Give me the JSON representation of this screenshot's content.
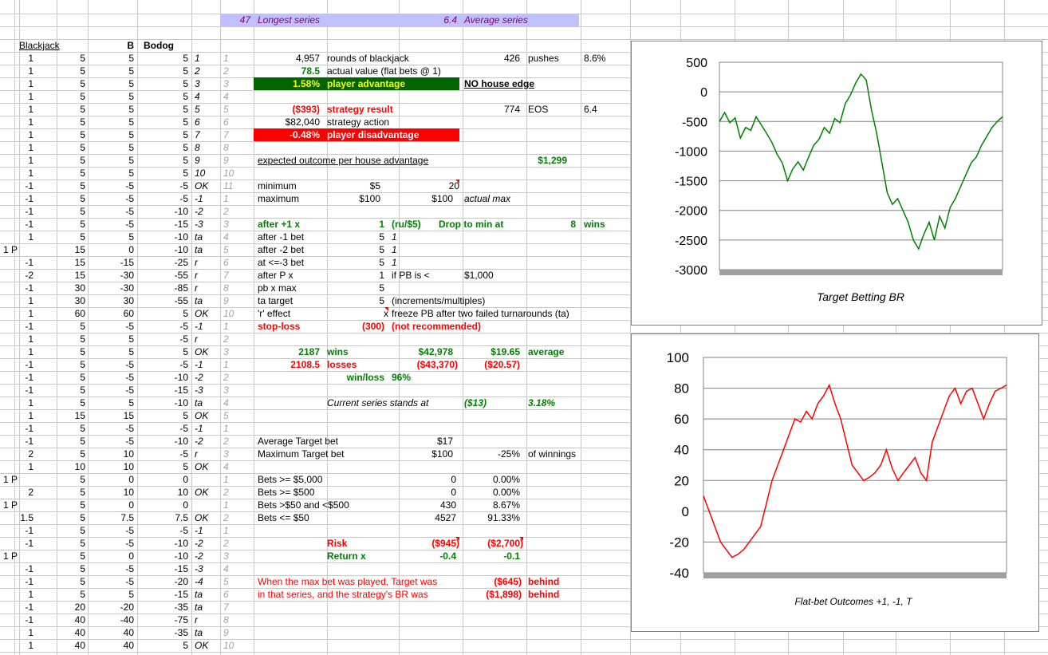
{
  "header": {
    "longest_value": "47",
    "longest_label": "Longest series",
    "average_value": "6.4",
    "average_label": "Average series"
  },
  "cols": {
    "blackjack": "Blackjack",
    "b": "B",
    "bodog": "Bodog"
  },
  "left_rows": [
    {
      "a": "",
      "bj": "1",
      "v": "5",
      "b": "5",
      "bd": "5",
      "s": "1",
      "n": "1"
    },
    {
      "a": "",
      "bj": "1",
      "v": "5",
      "b": "5",
      "bd": "5",
      "s": "2",
      "n": "2"
    },
    {
      "a": "",
      "bj": "1",
      "v": "5",
      "b": "5",
      "bd": "5",
      "s": "3",
      "n": "3"
    },
    {
      "a": "",
      "bj": "1",
      "v": "5",
      "b": "5",
      "bd": "5",
      "s": "4",
      "n": "4"
    },
    {
      "a": "",
      "bj": "1",
      "v": "5",
      "b": "5",
      "bd": "5",
      "s": "5",
      "n": "5"
    },
    {
      "a": "",
      "bj": "1",
      "v": "5",
      "b": "5",
      "bd": "5",
      "s": "6",
      "n": "6"
    },
    {
      "a": "",
      "bj": "1",
      "v": "5",
      "b": "5",
      "bd": "5",
      "s": "7",
      "n": "7"
    },
    {
      "a": "",
      "bj": "1",
      "v": "5",
      "b": "5",
      "bd": "5",
      "s": "8",
      "n": "8"
    },
    {
      "a": "",
      "bj": "1",
      "v": "5",
      "b": "5",
      "bd": "5",
      "s": "9",
      "n": "9"
    },
    {
      "a": "",
      "bj": "1",
      "v": "5",
      "b": "5",
      "bd": "5",
      "s": "10",
      "n": "10"
    },
    {
      "a": "",
      "bj": "-1",
      "v": "5",
      "b": "-5",
      "bd": "-5",
      "s": "OK",
      "n": "11"
    },
    {
      "a": "",
      "bj": "-1",
      "v": "5",
      "b": "-5",
      "bd": "-5",
      "s": "-1",
      "n": "1"
    },
    {
      "a": "",
      "bj": "-1",
      "v": "5",
      "b": "-5",
      "bd": "-10",
      "s": "-2",
      "n": "2"
    },
    {
      "a": "",
      "bj": "-1",
      "v": "5",
      "b": "-5",
      "bd": "-15",
      "s": "-3",
      "n": "3"
    },
    {
      "a": "",
      "bj": "1",
      "v": "5",
      "b": "5",
      "bd": "-10",
      "s": "ta",
      "n": "4"
    },
    {
      "a": "1 P",
      "bj": "",
      "v": "15",
      "b": "0",
      "bd": "-10",
      "s": "ta",
      "n": "5"
    },
    {
      "a": "",
      "bj": "-1",
      "v": "15",
      "b": "-15",
      "bd": "-25",
      "s": "r",
      "n": "6"
    },
    {
      "a": "",
      "bj": "-2",
      "v": "15",
      "b": "-30",
      "bd": "-55",
      "s": "r",
      "n": "7"
    },
    {
      "a": "",
      "bj": "-1",
      "v": "30",
      "b": "-30",
      "bd": "-85",
      "s": "r",
      "n": "8"
    },
    {
      "a": "",
      "bj": "1",
      "v": "30",
      "b": "30",
      "bd": "-55",
      "s": "ta",
      "n": "9"
    },
    {
      "a": "",
      "bj": "1",
      "v": "60",
      "b": "60",
      "bd": "5",
      "s": "OK",
      "n": "10"
    },
    {
      "a": "",
      "bj": "-1",
      "v": "5",
      "b": "-5",
      "bd": "-5",
      "s": "-1",
      "n": "1"
    },
    {
      "a": "",
      "bj": "1",
      "v": "5",
      "b": "5",
      "bd": "-5",
      "s": "r",
      "n": "2"
    },
    {
      "a": "",
      "bj": "1",
      "v": "5",
      "b": "5",
      "bd": "5",
      "s": "OK",
      "n": "3"
    },
    {
      "a": "",
      "bj": "-1",
      "v": "5",
      "b": "-5",
      "bd": "-5",
      "s": "-1",
      "n": "1"
    },
    {
      "a": "",
      "bj": "-1",
      "v": "5",
      "b": "-5",
      "bd": "-10",
      "s": "-2",
      "n": "2"
    },
    {
      "a": "",
      "bj": "-1",
      "v": "5",
      "b": "-5",
      "bd": "-15",
      "s": "-3",
      "n": "3"
    },
    {
      "a": "",
      "bj": "1",
      "v": "5",
      "b": "5",
      "bd": "-10",
      "s": "ta",
      "n": "4"
    },
    {
      "a": "",
      "bj": "1",
      "v": "15",
      "b": "15",
      "bd": "5",
      "s": "OK",
      "n": "5"
    },
    {
      "a": "",
      "bj": "-1",
      "v": "5",
      "b": "-5",
      "bd": "-5",
      "s": "-1",
      "n": "1"
    },
    {
      "a": "",
      "bj": "-1",
      "v": "5",
      "b": "-5",
      "bd": "-10",
      "s": "-2",
      "n": "2"
    },
    {
      "a": "",
      "bj": "2",
      "v": "5",
      "b": "10",
      "bd": "-5",
      "s": "r",
      "n": "3"
    },
    {
      "a": "",
      "bj": "1",
      "v": "10",
      "b": "10",
      "bd": "5",
      "s": "OK",
      "n": "4"
    },
    {
      "a": "1 P",
      "bj": "",
      "v": "5",
      "b": "0",
      "bd": "0",
      "s": "",
      "n": "1"
    },
    {
      "a": "",
      "bj": "2",
      "v": "5",
      "b": "10",
      "bd": "10",
      "s": "OK",
      "n": "2"
    },
    {
      "a": "1 P",
      "bj": "",
      "v": "5",
      "b": "0",
      "bd": "0",
      "s": "",
      "n": "1"
    },
    {
      "a": "",
      "bj": "1.5",
      "v": "5",
      "b": "7.5",
      "bd": "7.5",
      "s": "OK",
      "n": "2"
    },
    {
      "a": "",
      "bj": "-1",
      "v": "5",
      "b": "-5",
      "bd": "-5",
      "s": "-1",
      "n": "1"
    },
    {
      "a": "",
      "bj": "-1",
      "v": "5",
      "b": "-5",
      "bd": "-10",
      "s": "-2",
      "n": "2"
    },
    {
      "a": "1 P",
      "bj": "",
      "v": "5",
      "b": "0",
      "bd": "-10",
      "s": "-2",
      "n": "3"
    },
    {
      "a": "",
      "bj": "-1",
      "v": "5",
      "b": "-5",
      "bd": "-15",
      "s": "-3",
      "n": "4"
    },
    {
      "a": "",
      "bj": "-1",
      "v": "5",
      "b": "-5",
      "bd": "-20",
      "s": "-4",
      "n": "5"
    },
    {
      "a": "",
      "bj": "1",
      "v": "5",
      "b": "5",
      "bd": "-15",
      "s": "ta",
      "n": "6"
    },
    {
      "a": "",
      "bj": "-1",
      "v": "20",
      "b": "-20",
      "bd": "-35",
      "s": "ta",
      "n": "7"
    },
    {
      "a": "",
      "bj": "-1",
      "v": "40",
      "b": "-40",
      "bd": "-75",
      "s": "r",
      "n": "8"
    },
    {
      "a": "",
      "bj": "1",
      "v": "40",
      "b": "40",
      "bd": "-35",
      "s": "ta",
      "n": "9"
    },
    {
      "a": "",
      "bj": "1",
      "v": "40",
      "b": "40",
      "bd": "5",
      "s": "OK",
      "n": "10"
    }
  ],
  "stats": {
    "rounds_value": "4,957",
    "rounds_label": "rounds of blackjack",
    "pushes_value": "426",
    "pushes_label": "pushes",
    "pushes_pct": "8.6%",
    "actual_value": "78.5",
    "actual_label": "actual value (flat bets @ 1)",
    "player_adv_value": "1.58%",
    "player_adv_label": "player advantage",
    "no_house_edge": "NO house edge",
    "strategy_result_value": "($393)",
    "strategy_result_label": "strategy result",
    "eos_value": "774",
    "eos_label": "EOS",
    "eos_ratio": "6.4",
    "strategy_action_value": "$82,040",
    "strategy_action_label": "strategy action",
    "player_disadv_value": "-0.48%",
    "player_disadv_label": "player disadvantage",
    "expected_label": "expected outcome per house advantage",
    "expected_value": "$1,299",
    "minimum_label": "minimum",
    "minimum_value": "$5",
    "minimum_units": "20",
    "maximum_label": "maximum",
    "maximum_value": "$100",
    "maximum_value2": "$100",
    "actual_max": "actual max",
    "after_plus1_label": "after +1 x",
    "after_plus1_value": "1",
    "ru_label": "(ru/$5)",
    "drop_label": "Drop to min at",
    "drop_value": "8",
    "wins_label": "wins",
    "after_m1_label": "after -1 bet",
    "after_m1_value": "5",
    "after_m1_mult": "1",
    "after_m2_label": "after -2 bet",
    "after_m2_value": "5",
    "after_m2_mult": "1",
    "after_m3_label": "at <=-3 bet",
    "after_m3_value": "5",
    "after_m3_mult": "1",
    "after_p_label": "after P x",
    "after_p_value": "1",
    "if_pb_label": "if PB is <",
    "if_pb_value": "$1,000",
    "pb_max_label": "pb x max",
    "pb_max_value": "5",
    "ta_target_label": "ta target",
    "ta_target_value": "5",
    "increments_label": "(increments/multiples)",
    "r_effect_label": "'r' effect",
    "r_effect_value": "x",
    "freeze_label": "freeze PB after two failed turnarounds (ta)",
    "stoploss_label": "stop-loss",
    "stoploss_value": "(300)",
    "not_recommended": "(not recommended)",
    "wins_count": "2187",
    "wins_word": "wins",
    "wins_amount": "$42,978",
    "wins_avg": "$19.65",
    "average_word": "average",
    "losses_count": "2108.5",
    "losses_word": "losses",
    "losses_amount": "($43,370)",
    "losses_avg": "($20.57)",
    "winloss_label": "win/loss",
    "winloss_value": "96%",
    "current_label": "Current series stands at",
    "current_value": "($13)",
    "current_pct": "3.18%",
    "avg_target_label": "Average Target bet",
    "avg_target_value": "$17",
    "max_target_label": "Maximum Target bet",
    "max_target_value": "$100",
    "max_target_pct": "-25%",
    "of_winnings": "of winnings",
    "bets5000_label": "Bets >= $5,000",
    "bets5000_count": "0",
    "bets5000_pct": "0.00%",
    "bets500_label": "Bets >= $500",
    "bets500_count": "0",
    "bets500_pct": "0.00%",
    "bets50_500_label": "Bets >$50 and <$500",
    "bets50_500_count": "430",
    "bets50_500_pct": "8.67%",
    "bets50_label": "Bets <= $50",
    "bets50_count": "4527",
    "bets50_pct": "91.33%",
    "risk_label": "Risk",
    "risk_value1": "($945)",
    "risk_value2": "($2,700)",
    "return_label": "Return x",
    "return_value1": "-0.4",
    "return_value2": "-0.1",
    "maxbet_line1": "When the max bet was played, Target was",
    "maxbet_value1": "($645)",
    "behind1": "behind",
    "maxbet_line2": "in that series, and the strategy's BR was",
    "maxbet_value2": "($1,898)",
    "behind2": "behind"
  },
  "chart_data": [
    {
      "type": "line",
      "title": "Target Betting BR",
      "xlabel": "",
      "ylabel": "",
      "ylim": [
        -3000,
        500
      ],
      "y_ticks": [
        "500",
        "0",
        "-500",
        "-1000",
        "-1500",
        "-2000",
        "-2500",
        "-3000"
      ],
      "series": [
        {
          "color": "#008000",
          "values": [
            -500,
            -350,
            -520,
            -440,
            -780,
            -600,
            -650,
            -420,
            -560,
            -700,
            -850,
            -1050,
            -1200,
            -1500,
            -1300,
            -1180,
            -1320,
            -1100,
            -900,
            -800,
            -600,
            -700,
            -450,
            -520,
            -200,
            -50,
            150,
            300,
            200,
            -300,
            -700,
            -1200,
            -1700,
            -1900,
            -1800,
            -2000,
            -2200,
            -2500,
            -2650,
            -2400,
            -2200,
            -2500,
            -2100,
            -2300,
            -1950,
            -1800,
            -1600,
            -1400,
            -1200,
            -1100,
            -900,
            -750,
            -600,
            -500,
            -420
          ]
        }
      ],
      "grid": true
    },
    {
      "type": "line",
      "title": "Flat-bet Outcomes +1, -1, T",
      "xlabel": "",
      "ylabel": "",
      "ylim": [
        -40,
        100
      ],
      "y_ticks": [
        "100",
        "80",
        "60",
        "40",
        "20",
        "0",
        "-20",
        "-40"
      ],
      "series": [
        {
          "color": "#ff0000",
          "values": [
            10,
            0,
            -10,
            -20,
            -25,
            -30,
            -28,
            -25,
            -20,
            -15,
            -10,
            5,
            20,
            30,
            40,
            50,
            60,
            58,
            65,
            60,
            70,
            75,
            82,
            70,
            60,
            45,
            30,
            25,
            20,
            22,
            25,
            30,
            40,
            28,
            20,
            25,
            30,
            35,
            25,
            20,
            45,
            55,
            65,
            75,
            80,
            70,
            78,
            80,
            70,
            60,
            70,
            78,
            80,
            82
          ]
        }
      ],
      "grid": true
    }
  ]
}
